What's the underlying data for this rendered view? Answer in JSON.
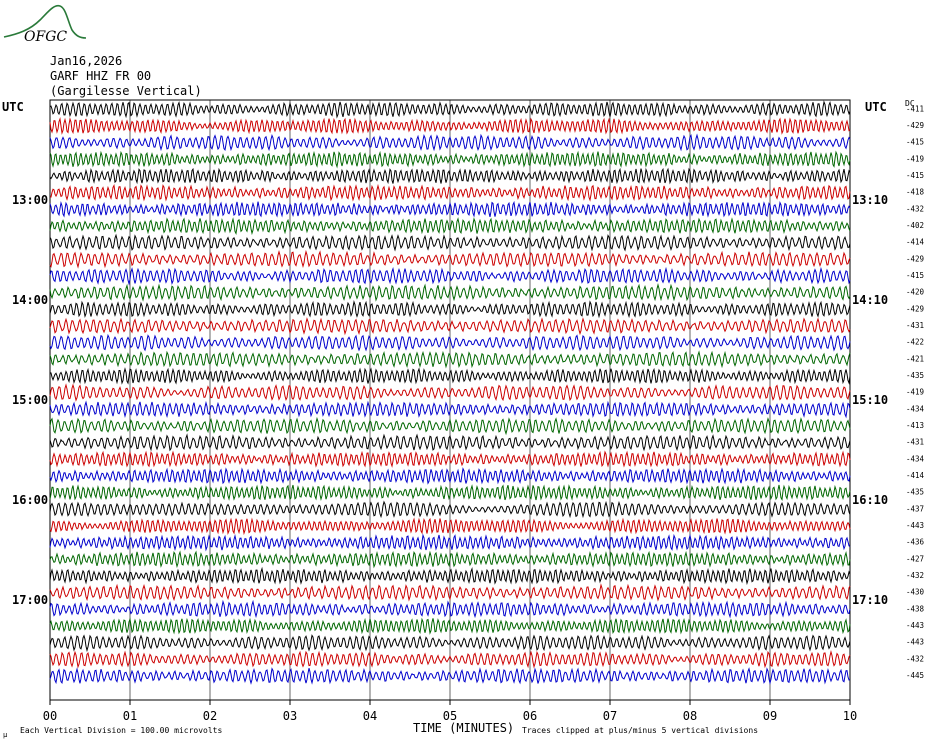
{
  "header": {
    "logo_text": "OFGC",
    "date": "Jan16,2026",
    "station": "GARF HHZ FR 00",
    "location": "(Gargilesse Vertical)"
  },
  "labels": {
    "utc_left": "UTC",
    "utc_right": "UTC",
    "dc_label": "DC"
  },
  "footer": {
    "time_label": "TIME (MINUTES)",
    "division_note": "Each Vertical Division =  100.00 microvolts",
    "clip_note": "Traces clipped at plus/minus 5 vertical divisions",
    "corner_mark": "μ"
  },
  "colors": {
    "trace_cycle": [
      "#000000",
      "#cc0000",
      "#0000cc",
      "#006600"
    ],
    "grid": "#000000",
    "logo": "#2a7a3a"
  },
  "chart_data": {
    "type": "helicorder",
    "xlabel": "TIME (MINUTES)",
    "xlim": [
      0,
      10
    ],
    "x_ticks": [
      "00",
      "01",
      "02",
      "03",
      "04",
      "05",
      "06",
      "07",
      "08",
      "09",
      "10"
    ],
    "rows_per_hour": 6,
    "left_time_labels": [
      {
        "row": 6,
        "label": "13:00"
      },
      {
        "row": 12,
        "label": "14:00"
      },
      {
        "row": 18,
        "label": "15:00"
      },
      {
        "row": 24,
        "label": "16:00"
      },
      {
        "row": 30,
        "label": "17:00"
      }
    ],
    "right_time_labels": [
      {
        "row": 6,
        "label": "13:10"
      },
      {
        "row": 12,
        "label": "14:10"
      },
      {
        "row": 18,
        "label": "15:10"
      },
      {
        "row": 24,
        "label": "16:10"
      },
      {
        "row": 30,
        "label": "17:10"
      }
    ],
    "dc_offsets": [
      "-411",
      "-429",
      "-415",
      "-419",
      "-415",
      "-418",
      "-432",
      "-402",
      "-414",
      "-429",
      "-415",
      "-420",
      "-429",
      "-431",
      "-422",
      "-421",
      "-435",
      "-419",
      "-434",
      "-413",
      "-431",
      "-434",
      "-414",
      "-435",
      "-437",
      "-443",
      "-436",
      "-427",
      "-432",
      "-430",
      "-438",
      "-443",
      "-443",
      "-432",
      "-445"
    ]
  }
}
